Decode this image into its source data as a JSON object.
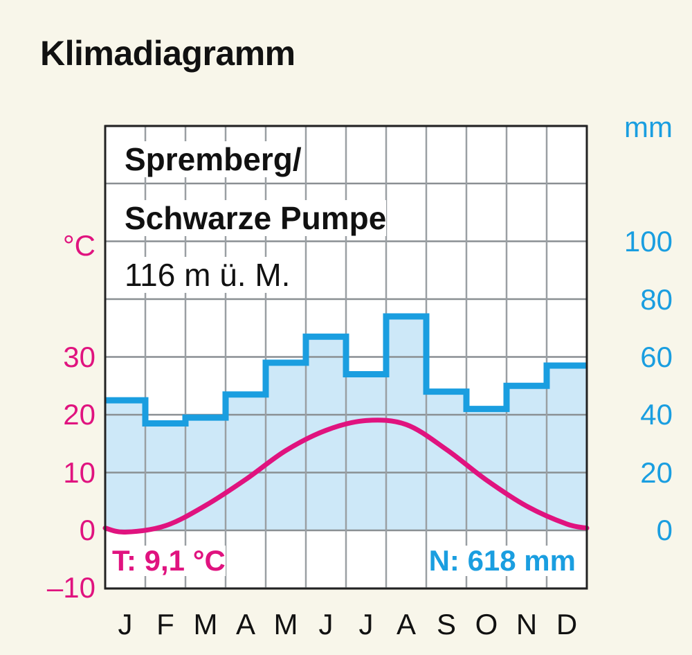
{
  "chart_data": {
    "type": "bar",
    "title": "Klimadiagramm",
    "station": {
      "name_line1": "Spremberg/",
      "name_line2": "Schwarze Pumpe",
      "elevation": "116 m ü. M."
    },
    "categories": [
      "J",
      "F",
      "M",
      "A",
      "M",
      "J",
      "J",
      "A",
      "S",
      "O",
      "N",
      "D"
    ],
    "series": [
      {
        "name": "N",
        "kind": "step-area",
        "unit": "mm",
        "axis": "right",
        "color": "#1a9ee0",
        "fill": "#cde8f8",
        "values": [
          45,
          37,
          39,
          47,
          58,
          67,
          54,
          74,
          48,
          42,
          50,
          57
        ]
      },
      {
        "name": "T",
        "kind": "line",
        "unit": "°C",
        "axis": "left",
        "color": "#e0137f",
        "values": [
          -0.3,
          0.8,
          4.3,
          8.8,
          13.8,
          17.3,
          19.0,
          18.3,
          14.0,
          8.7,
          4.2,
          1.1
        ]
      }
    ],
    "left_axis": {
      "unit": "°C",
      "ticks": [
        "30",
        "20",
        "10",
        "0",
        "–10"
      ],
      "ylim": [
        -10,
        70
      ]
    },
    "right_axis": {
      "unit": "mm",
      "ticks": [
        "100",
        "80",
        "60",
        "40",
        "20",
        "0"
      ],
      "ylim": [
        0,
        140
      ]
    },
    "legend": {
      "temperature": "T: 9,1 °C",
      "precipitation": "N: 618 mm"
    },
    "grid": true
  }
}
